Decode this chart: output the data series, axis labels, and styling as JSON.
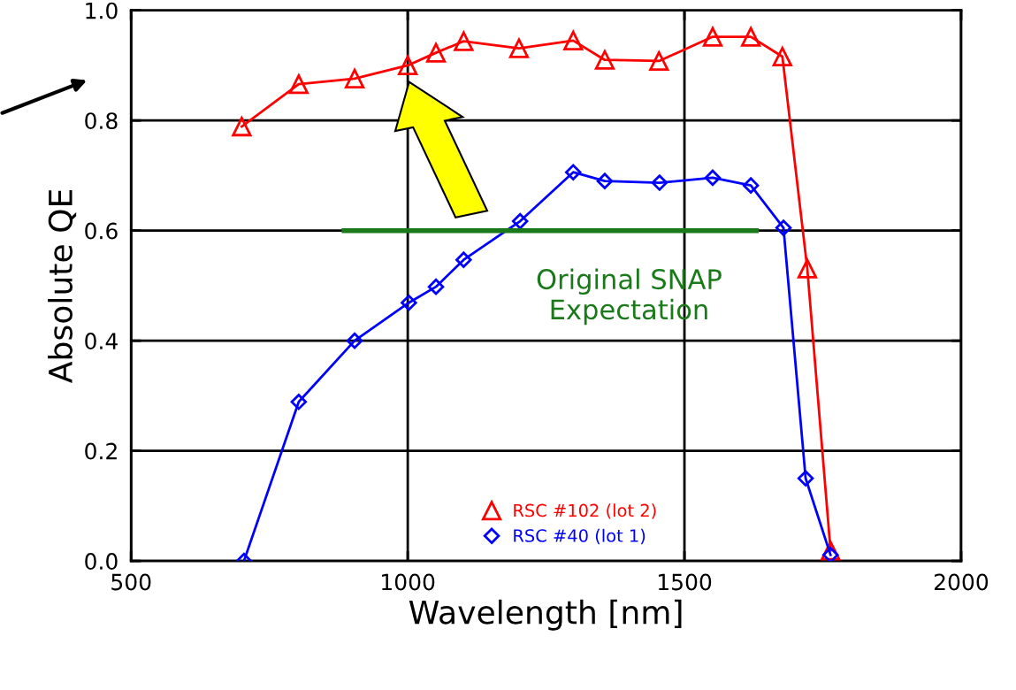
{
  "chart_data": {
    "type": "line",
    "xlabel": "Wavelength [nm]",
    "ylabel": "Absolute QE",
    "xlim": [
      500,
      2000
    ],
    "xticks": [
      500,
      1000,
      1500,
      2000
    ],
    "ylim": [
      0,
      1
    ],
    "yticks": [
      {
        "value": 0,
        "label": "0.0"
      },
      0.2,
      0.4,
      0.6,
      0.8,
      {
        "value": 1,
        "label": "1.0"
      }
    ],
    "grid": true,
    "legend": "bottom",
    "series": [
      {
        "name": "RSC #102 (lot 2)",
        "color": "#ff0000",
        "marker": "triangle",
        "x": [
          700,
          803,
          904,
          1000,
          1051,
          1101,
          1201,
          1299,
          1356,
          1454,
          1551,
          1620,
          1677,
          1722,
          1764
        ],
        "values": [
          0.789,
          0.866,
          0.876,
          0.9,
          0.923,
          0.944,
          0.931,
          0.945,
          0.91,
          0.908,
          0.952,
          0.952,
          0.916,
          0.531,
          0.019
        ]
      },
      {
        "name": "RSC #40 (lot 1)",
        "color": "#0000ff",
        "marker": "diamond",
        "x": [
          704,
          803,
          904,
          1002,
          1051,
          1101,
          1203,
          1299,
          1356,
          1455,
          1551,
          1620,
          1679,
          1719,
          1764
        ],
        "values": [
          0.0,
          0.289,
          0.4,
          0.469,
          0.498,
          0.547,
          0.617,
          0.706,
          0.69,
          0.687,
          0.696,
          0.682,
          0.605,
          0.15,
          0.011
        ]
      },
      {
        "color": "#1a7a1a",
        "marker": "none",
        "x": [
          885,
          1630
        ],
        "values": [
          0.6,
          0.6
        ]
      }
    ],
    "annotations": [
      "Original SNAP\nExpectation"
    ]
  }
}
